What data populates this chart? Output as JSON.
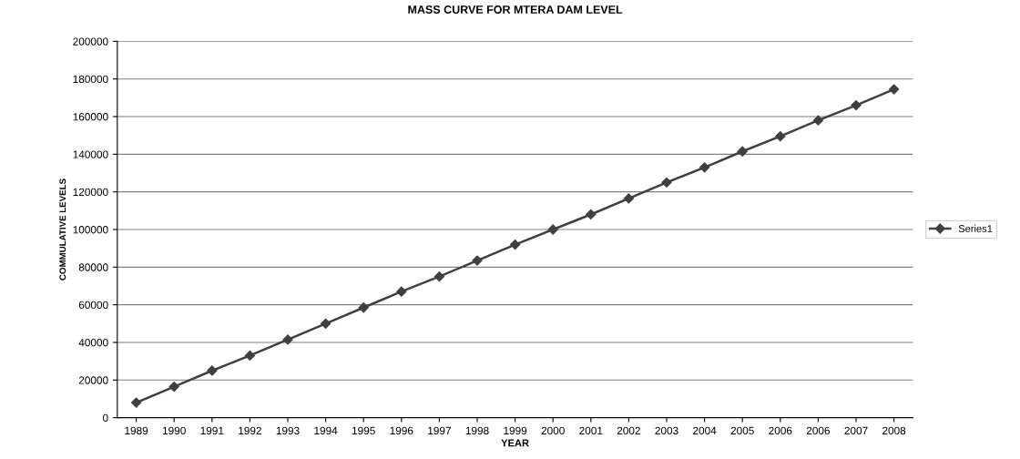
{
  "chart_data": {
    "type": "line",
    "title": "MASS CURVE FOR MTERA DAM LEVEL",
    "xlabel": "YEAR",
    "ylabel": "COMMULATIVE LEVELS",
    "categories": [
      "1989",
      "1990",
      "1991",
      "1992",
      "1993",
      "1994",
      "1995",
      "1996",
      "1997",
      "1998",
      "1999",
      "2000",
      "2001",
      "2002",
      "2003",
      "2004",
      "2005",
      "2006",
      "2006",
      "2007",
      "2008"
    ],
    "series": [
      {
        "name": "Series1",
        "color": "#404040",
        "values": [
          8000,
          16500,
          25000,
          33000,
          41500,
          50000,
          58500,
          67000,
          75000,
          83500,
          92000,
          100000,
          108000,
          116500,
          125000,
          133000,
          141500,
          149500,
          158000,
          166000,
          174500
        ]
      }
    ],
    "ylim": [
      0,
      200000
    ],
    "yticks": [
      0,
      20000,
      40000,
      60000,
      80000,
      100000,
      120000,
      140000,
      160000,
      180000,
      200000
    ],
    "grid": "y",
    "legend": "right",
    "marker": "diamond",
    "line_style": "solid"
  }
}
